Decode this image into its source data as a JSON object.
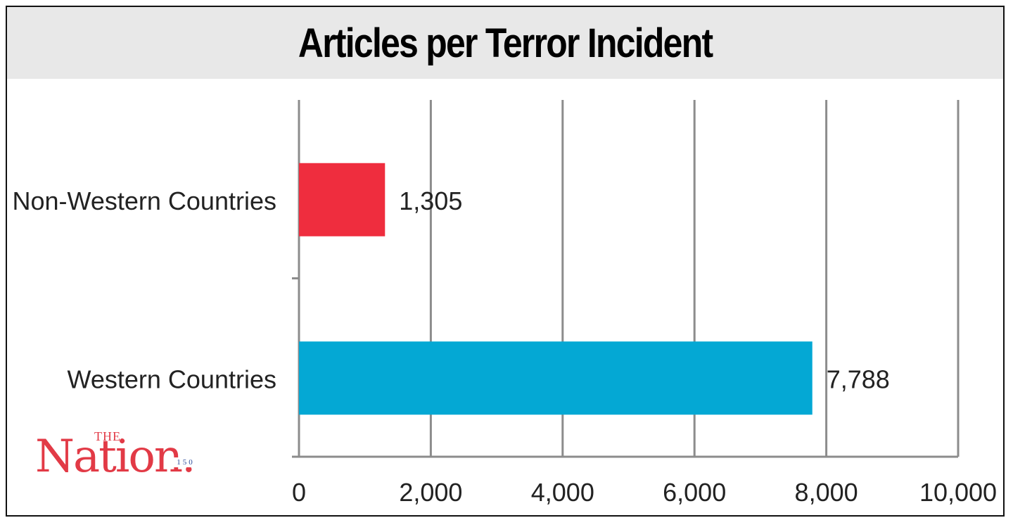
{
  "chart_data": {
    "type": "bar",
    "orientation": "horizontal",
    "title": "Articles per Terror Incident",
    "categories": [
      "Non-Western Countries",
      "Western Countries"
    ],
    "values": [
      1305,
      7788
    ],
    "value_labels": [
      "1,305",
      "7,788"
    ],
    "colors": [
      "#ef2d3e",
      "#04a8d4"
    ],
    "xlim": [
      0,
      10000
    ],
    "xticks": [
      0,
      2000,
      4000,
      6000,
      8000,
      10000
    ],
    "xtick_labels": [
      "0",
      "2,000",
      "4,000",
      "6,000",
      "8,000",
      "10,000"
    ],
    "grid": true,
    "xlabel": "",
    "ylabel": ""
  },
  "logo": {
    "the": "THE",
    "word": "Nation.",
    "badge": "150",
    "color": "#e23a46"
  }
}
